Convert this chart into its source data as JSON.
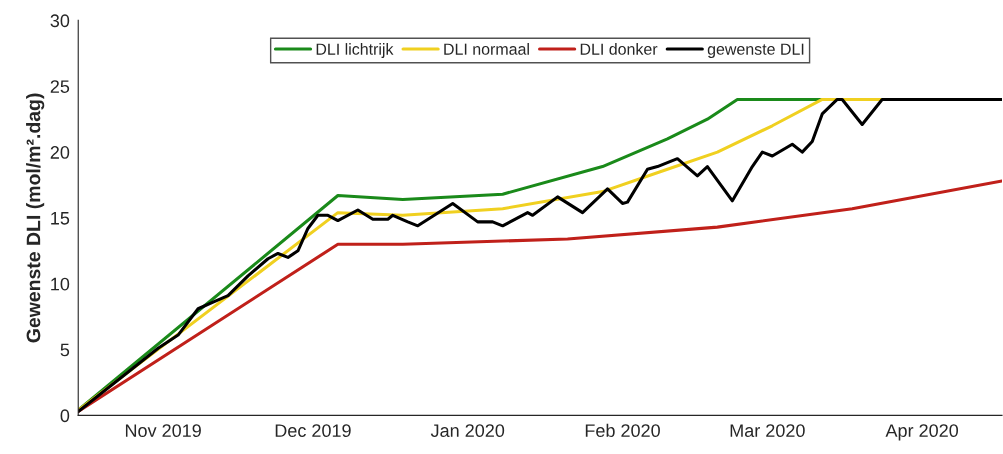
{
  "chart_data": {
    "type": "line",
    "ylabel": "Gewenste DLI (mol/m².dag)",
    "xlim": [
      "2019-10-15",
      "2020-04-17"
    ],
    "ylim": [
      0,
      30
    ],
    "yticks": [
      0,
      5,
      10,
      15,
      20,
      25,
      30
    ],
    "xticks": [
      {
        "value": "2019-11-01",
        "label": "Nov 2019"
      },
      {
        "value": "2019-12-01",
        "label": "Dec 2019"
      },
      {
        "value": "2020-01-01",
        "label": "Jan 2020"
      },
      {
        "value": "2020-02-01",
        "label": "Feb 2020"
      },
      {
        "value": "2020-03-01",
        "label": "Mar 2020"
      },
      {
        "value": "2020-04-01",
        "label": "Apr 2020"
      }
    ],
    "grid": false,
    "legend": "top",
    "line_style": "solid",
    "marker": "none",
    "series": [
      {
        "name": "DLI lichtrijk",
        "color": "#1a8a1a",
        "x": [
          "2019-10-15",
          "2019-12-06",
          "2019-12-19",
          "2020-01-08",
          "2020-01-28",
          "2020-02-10",
          "2020-02-18",
          "2020-02-24",
          "2020-03-12"
        ],
        "values": [
          0.4,
          16.7,
          16.4,
          16.8,
          18.9,
          21.0,
          22.5,
          24,
          24
        ]
      },
      {
        "name": "DLI normaal",
        "color": "#f0d020",
        "x": [
          "2019-10-15",
          "2019-12-06",
          "2019-12-19",
          "2020-01-08",
          "2020-01-28",
          "2020-02-10",
          "2020-02-20",
          "2020-03-02",
          "2020-03-12",
          "2020-03-24"
        ],
        "values": [
          0.4,
          15.4,
          15.2,
          15.7,
          17.0,
          18.7,
          20.0,
          22.0,
          24,
          24
        ]
      },
      {
        "name": "DLI donker",
        "color": "#c0201a",
        "x": [
          "2019-10-15",
          "2019-12-06",
          "2019-12-19",
          "2020-01-21",
          "2020-02-20",
          "2020-03-18",
          "2020-04-17"
        ],
        "values": [
          0.3,
          13.0,
          13.0,
          13.4,
          14.3,
          15.7,
          17.8
        ]
      },
      {
        "name": "gewenste DLI",
        "color": "#000000",
        "x": [
          "2019-10-15",
          "2019-10-31",
          "2019-11-04",
          "2019-11-08",
          "2019-11-11",
          "2019-11-14",
          "2019-11-18",
          "2019-11-22",
          "2019-11-24",
          "2019-11-26",
          "2019-11-28",
          "2019-11-30",
          "2019-12-02",
          "2019-12-04",
          "2019-12-06",
          "2019-12-10",
          "2019-12-13",
          "2019-12-16",
          "2019-12-17",
          "2019-12-20",
          "2019-12-22",
          "2019-12-29",
          "2020-01-03",
          "2020-01-06",
          "2020-01-08",
          "2020-01-13",
          "2020-01-14",
          "2020-01-19",
          "2020-01-24",
          "2020-01-29",
          "2020-02-01",
          "2020-02-02",
          "2020-02-06",
          "2020-02-08",
          "2020-02-12",
          "2020-02-16",
          "2020-02-18",
          "2020-02-23",
          "2020-02-27",
          "2020-02-29",
          "2020-03-02",
          "2020-03-06",
          "2020-03-08",
          "2020-03-10",
          "2020-03-12",
          "2020-03-15",
          "2020-03-16",
          "2020-03-20",
          "2020-03-24",
          "2020-04-17"
        ],
        "values": [
          0.3,
          5.1,
          6.1,
          8.1,
          8.6,
          9.1,
          10.6,
          11.9,
          12.3,
          12.0,
          12.5,
          14.2,
          15.2,
          15.2,
          14.8,
          15.6,
          14.9,
          14.9,
          15.2,
          14.7,
          14.4,
          16.1,
          14.7,
          14.7,
          14.4,
          15.4,
          15.2,
          16.6,
          15.4,
          17.2,
          16.1,
          16.2,
          18.7,
          18.9,
          19.5,
          18.2,
          18.9,
          16.3,
          18.9,
          20.0,
          19.7,
          20.6,
          20.0,
          20.8,
          22.9,
          24,
          24,
          22.1,
          24,
          24
        ]
      }
    ]
  }
}
